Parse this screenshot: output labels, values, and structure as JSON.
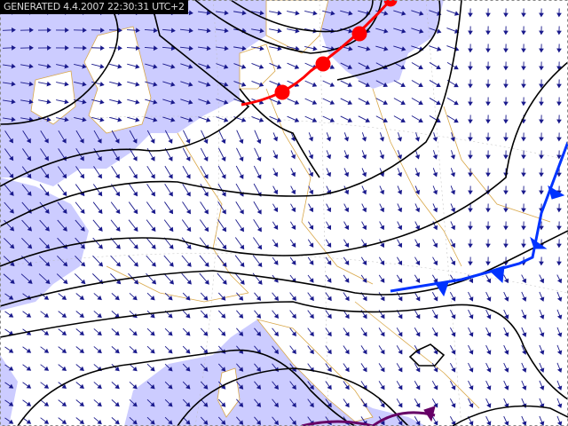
{
  "stamp": "GENERATED 4.4.2007 22:30:31 UTC+2",
  "colors": {
    "sea": "#ccccff",
    "land": "#ffffff",
    "borders": "#d9a84a",
    "isobars": "#000000",
    "wind_arrows": "#1a1a8c",
    "warm_front": "#ff0000",
    "cold_front": "#0033ff",
    "occluded_front": "#660066"
  },
  "layers": [
    "sea",
    "land",
    "country-borders",
    "graticule",
    "wind-arrows",
    "isobars",
    "warm-front",
    "cold-front",
    "occluded-front"
  ]
}
